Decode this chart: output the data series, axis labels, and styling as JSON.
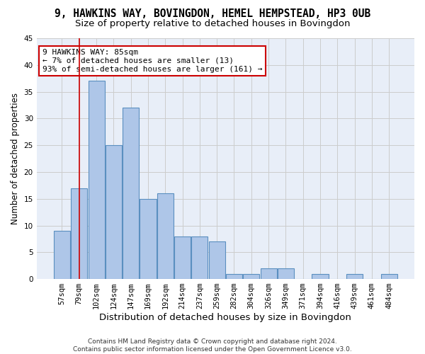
{
  "title": "9, HAWKINS WAY, BOVINGDON, HEMEL HEMPSTEAD, HP3 0UB",
  "subtitle": "Size of property relative to detached houses in Bovingdon",
  "xlabel": "Distribution of detached houses by size in Bovingdon",
  "ylabel": "Number of detached properties",
  "bar_values": [
    9,
    17,
    37,
    25,
    32,
    15,
    16,
    8,
    8,
    7,
    1,
    1,
    2,
    2,
    0,
    1,
    0,
    1,
    0,
    1
  ],
  "bin_labels": [
    "57sqm",
    "79sqm",
    "102sqm",
    "124sqm",
    "147sqm",
    "169sqm",
    "192sqm",
    "214sqm",
    "237sqm",
    "259sqm",
    "282sqm",
    "304sqm",
    "326sqm",
    "349sqm",
    "371sqm",
    "394sqm",
    "416sqm",
    "439sqm",
    "461sqm",
    "484sqm"
  ],
  "bar_color": "#aec6e8",
  "bar_edge_color": "#5a8fc0",
  "grid_color": "#cccccc",
  "bg_color": "#e8eef8",
  "vline_x": 1.0,
  "vline_color": "#cc0000",
  "annotation_text": "9 HAWKINS WAY: 85sqm\n← 7% of detached houses are smaller (13)\n93% of semi-detached houses are larger (161) →",
  "annotation_box_color": "#cc0000",
  "ylim": [
    0,
    45
  ],
  "yticks": [
    0,
    5,
    10,
    15,
    20,
    25,
    30,
    35,
    40,
    45
  ],
  "footer_line1": "Contains HM Land Registry data © Crown copyright and database right 2024.",
  "footer_line2": "Contains public sector information licensed under the Open Government Licence v3.0.",
  "title_fontsize": 10.5,
  "subtitle_fontsize": 9.5,
  "xlabel_fontsize": 9.5,
  "ylabel_fontsize": 8.5,
  "tick_fontsize": 7.5,
  "annotation_fontsize": 8,
  "footer_fontsize": 6.5
}
